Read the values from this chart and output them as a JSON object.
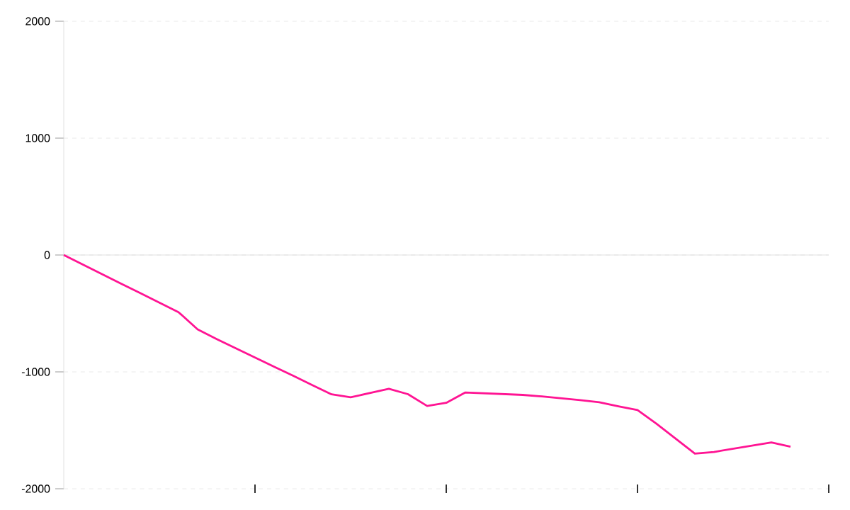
{
  "chart_data": {
    "type": "line",
    "categories": [
      null,
      null,
      null,
      null,
      null,
      null,
      null,
      null,
      null,
      null,
      null,
      null,
      null,
      null,
      null,
      null,
      null,
      null,
      null,
      null,
      null,
      null,
      null,
      null,
      null,
      null,
      null,
      null,
      null,
      null,
      null,
      null,
      null,
      null,
      null,
      null,
      null,
      null,
      null
    ],
    "series": [
      {
        "color": "#ff1493",
        "values": [
          0,
          -82,
          -163,
          -245,
          -326,
          -408,
          -489,
          -636,
          -719,
          -798,
          -877,
          -956,
          -1034,
          -1113,
          -1192,
          -1218,
          -1181,
          -1145,
          -1191,
          -1292,
          -1265,
          -1176,
          -1183,
          -1190,
          -1197,
          -1210,
          -1226,
          -1242,
          -1260,
          -1294,
          -1327,
          -1445,
          -1572,
          -1699,
          -1685,
          -1658,
          -1631,
          -1604,
          -1640
        ]
      }
    ],
    "ylim": [
      -2000,
      2000
    ],
    "yticks": [
      -2000,
      -1000,
      0,
      1000,
      2000
    ],
    "tick_labels": "y",
    "grid": "y",
    "marker": "none",
    "line_style": "solid"
  }
}
